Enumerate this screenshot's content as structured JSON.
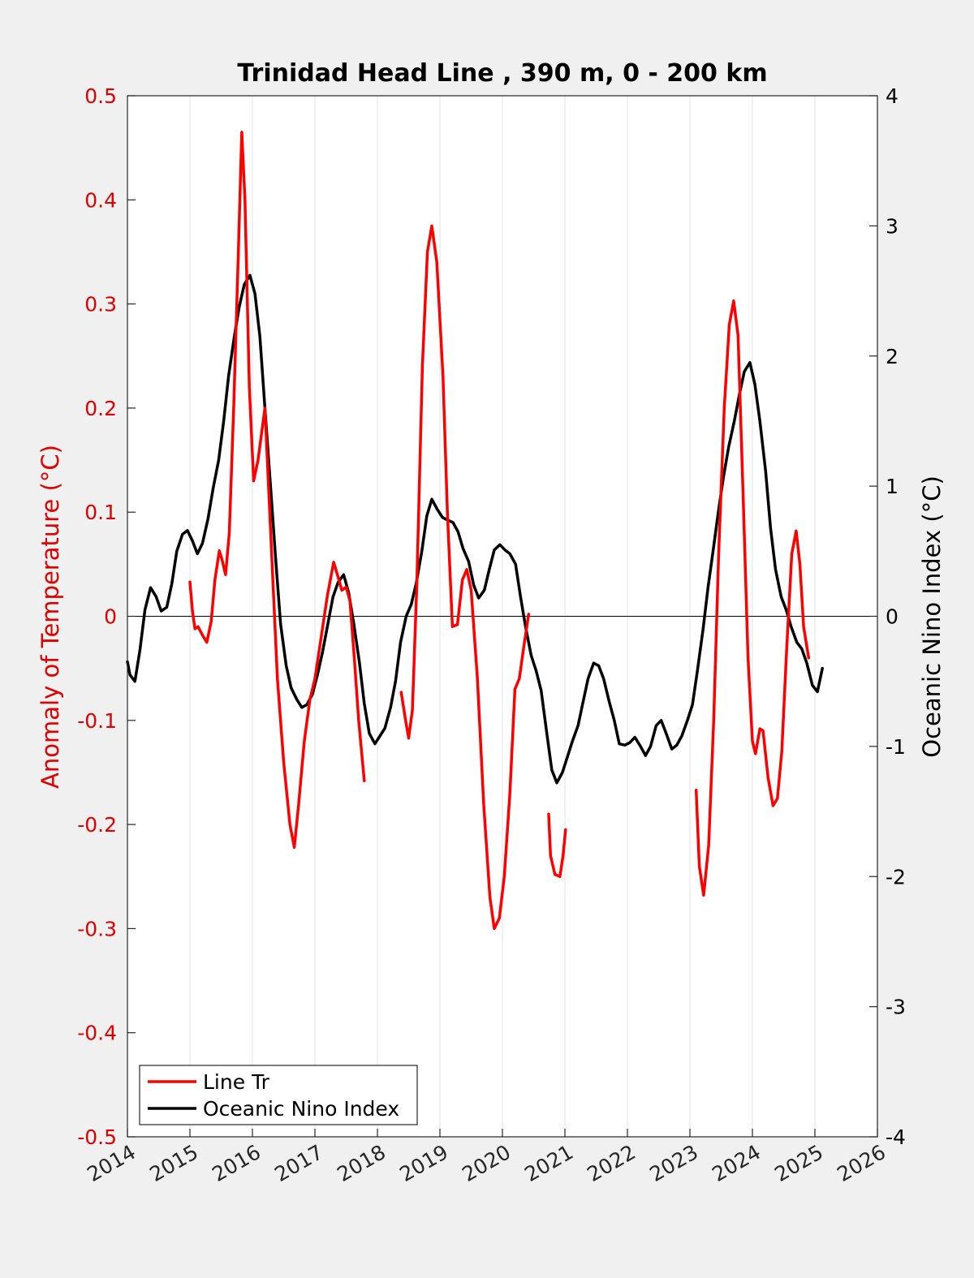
{
  "chart_data": {
    "type": "line",
    "title": "Trinidad Head Line , 390 m, 0 - 200 km",
    "xlabel": "",
    "ylabel_left": "Anomaly of Temperature (°C)",
    "ylabel_right": "Oceanic Nino Index (°C)",
    "xlim": [
      2014,
      2026
    ],
    "ylim_left": [
      -0.5,
      0.5
    ],
    "ylim_right": [
      -4,
      4
    ],
    "x_ticks": [
      "2014",
      "2015",
      "2016",
      "2017",
      "2018",
      "2019",
      "2020",
      "2021",
      "2022",
      "2023",
      "2024",
      "2025",
      "2026"
    ],
    "y_ticks_left": [
      "0.5",
      "0.4",
      "0.3",
      "0.2",
      "0.1",
      "0",
      "-0.1",
      "-0.2",
      "-0.3",
      "-0.4",
      "-0.5"
    ],
    "y_ticks_right": [
      "4",
      "3",
      "2",
      "1",
      "0",
      "-1",
      "-2",
      "-3",
      "-4"
    ],
    "grid": "vertical",
    "zero_line": true,
    "legend_position": "bottom-left",
    "colors": {
      "line_tr": "#ff0000",
      "oni": "#000000",
      "left_axis": "#e00000",
      "right_axis": "#000000"
    },
    "series": [
      {
        "name": "Line Tr",
        "axis": "left",
        "segments": [
          [
            [
              2015.0,
              0.033
            ],
            [
              2015.04,
              0.005
            ],
            [
              2015.08,
              -0.012
            ],
            [
              2015.13,
              -0.01
            ],
            [
              2015.2,
              -0.018
            ],
            [
              2015.27,
              -0.025
            ],
            [
              2015.34,
              -0.005
            ],
            [
              2015.4,
              0.035
            ],
            [
              2015.47,
              0.063
            ],
            [
              2015.51,
              0.055
            ],
            [
              2015.57,
              0.04
            ],
            [
              2015.63,
              0.08
            ],
            [
              2015.7,
              0.2
            ],
            [
              2015.77,
              0.34
            ],
            [
              2015.83,
              0.465
            ],
            [
              2015.88,
              0.4
            ],
            [
              2015.95,
              0.22
            ],
            [
              2016.02,
              0.13
            ],
            [
              2016.09,
              0.15
            ],
            [
              2016.2,
              0.2
            ],
            [
              2016.3,
              0.07
            ],
            [
              2016.4,
              -0.06
            ],
            [
              2016.5,
              -0.14
            ],
            [
              2016.6,
              -0.2
            ],
            [
              2016.67,
              -0.222
            ],
            [
              2016.74,
              -0.18
            ],
            [
              2016.83,
              -0.12
            ],
            [
              2016.92,
              -0.08
            ],
            [
              2017.0,
              -0.06
            ],
            [
              2017.1,
              -0.02
            ],
            [
              2017.2,
              0.02
            ],
            [
              2017.3,
              0.052
            ],
            [
              2017.36,
              0.04
            ],
            [
              2017.43,
              0.025
            ],
            [
              2017.5,
              0.028
            ],
            [
              2017.56,
              0.015
            ],
            [
              2017.63,
              -0.04
            ],
            [
              2017.7,
              -0.1
            ],
            [
              2017.79,
              -0.158
            ]
          ],
          [
            [
              2018.38,
              -0.073
            ],
            [
              2018.45,
              -0.1
            ],
            [
              2018.5,
              -0.117
            ],
            [
              2018.56,
              -0.09
            ],
            [
              2018.63,
              0.03
            ],
            [
              2018.72,
              0.24
            ],
            [
              2018.8,
              0.35
            ],
            [
              2018.87,
              0.375
            ],
            [
              2018.95,
              0.34
            ],
            [
              2019.05,
              0.23
            ],
            [
              2019.12,
              0.1
            ],
            [
              2019.2,
              -0.01
            ],
            [
              2019.28,
              -0.008
            ],
            [
              2019.36,
              0.035
            ],
            [
              2019.43,
              0.045
            ],
            [
              2019.5,
              0.025
            ],
            [
              2019.6,
              -0.06
            ],
            [
              2019.7,
              -0.18
            ],
            [
              2019.8,
              -0.27
            ],
            [
              2019.87,
              -0.3
            ],
            [
              2019.95,
              -0.29
            ],
            [
              2020.03,
              -0.25
            ],
            [
              2020.12,
              -0.17
            ],
            [
              2020.2,
              -0.07
            ],
            [
              2020.27,
              -0.06
            ],
            [
              2020.34,
              -0.03
            ],
            [
              2020.42,
              0.002
            ]
          ],
          [
            [
              2020.74,
              -0.19
            ],
            [
              2020.77,
              -0.23
            ],
            [
              2020.84,
              -0.248
            ],
            [
              2020.92,
              -0.25
            ],
            [
              2020.97,
              -0.23
            ],
            [
              2021.01,
              -0.205
            ]
          ],
          [
            [
              2023.1,
              -0.167
            ],
            [
              2023.15,
              -0.24
            ],
            [
              2023.22,
              -0.268
            ],
            [
              2023.3,
              -0.22
            ],
            [
              2023.38,
              -0.1
            ],
            [
              2023.46,
              0.06
            ],
            [
              2023.55,
              0.2
            ],
            [
              2023.63,
              0.28
            ],
            [
              2023.7,
              0.303
            ],
            [
              2023.77,
              0.27
            ],
            [
              2023.85,
              0.12
            ],
            [
              2023.93,
              -0.04
            ],
            [
              2024.0,
              -0.12
            ],
            [
              2024.05,
              -0.132
            ],
            [
              2024.12,
              -0.108
            ],
            [
              2024.17,
              -0.11
            ],
            [
              2024.25,
              -0.155
            ],
            [
              2024.33,
              -0.182
            ],
            [
              2024.4,
              -0.175
            ],
            [
              2024.47,
              -0.13
            ],
            [
              2024.55,
              -0.03
            ],
            [
              2024.63,
              0.06
            ],
            [
              2024.7,
              0.082
            ],
            [
              2024.76,
              0.05
            ],
            [
              2024.82,
              -0.01
            ],
            [
              2024.9,
              -0.04
            ]
          ]
        ]
      },
      {
        "name": "Oceanic Nino Index",
        "axis": "right",
        "segments": [
          [
            [
              2014.0,
              -0.35
            ],
            [
              2014.04,
              -0.45
            ],
            [
              2014.12,
              -0.5
            ],
            [
              2014.2,
              -0.26
            ],
            [
              2014.28,
              0.05
            ],
            [
              2014.37,
              0.22
            ],
            [
              2014.46,
              0.15
            ],
            [
              2014.54,
              0.04
            ],
            [
              2014.63,
              0.07
            ],
            [
              2014.71,
              0.25
            ],
            [
              2014.79,
              0.5
            ],
            [
              2014.88,
              0.63
            ],
            [
              2014.96,
              0.66
            ],
            [
              2015.04,
              0.58
            ],
            [
              2015.12,
              0.48
            ],
            [
              2015.2,
              0.56
            ],
            [
              2015.29,
              0.75
            ],
            [
              2015.37,
              0.98
            ],
            [
              2015.46,
              1.2
            ],
            [
              2015.54,
              1.5
            ],
            [
              2015.62,
              1.85
            ],
            [
              2015.71,
              2.15
            ],
            [
              2015.79,
              2.38
            ],
            [
              2015.87,
              2.55
            ],
            [
              2015.96,
              2.62
            ],
            [
              2016.04,
              2.48
            ],
            [
              2016.12,
              2.15
            ],
            [
              2016.2,
              1.6
            ],
            [
              2016.29,
              1.0
            ],
            [
              2016.37,
              0.45
            ],
            [
              2016.45,
              -0.06
            ],
            [
              2016.54,
              -0.38
            ],
            [
              2016.62,
              -0.55
            ],
            [
              2016.71,
              -0.64
            ],
            [
              2016.79,
              -0.7
            ],
            [
              2016.87,
              -0.68
            ],
            [
              2016.96,
              -0.6
            ],
            [
              2017.04,
              -0.45
            ],
            [
              2017.12,
              -0.28
            ],
            [
              2017.21,
              -0.05
            ],
            [
              2017.29,
              0.15
            ],
            [
              2017.37,
              0.26
            ],
            [
              2017.46,
              0.32
            ],
            [
              2017.54,
              0.18
            ],
            [
              2017.62,
              -0.05
            ],
            [
              2017.71,
              -0.35
            ],
            [
              2017.79,
              -0.67
            ],
            [
              2017.87,
              -0.9
            ],
            [
              2017.96,
              -0.98
            ],
            [
              2018.04,
              -0.92
            ],
            [
              2018.12,
              -0.86
            ],
            [
              2018.21,
              -0.7
            ],
            [
              2018.29,
              -0.5
            ],
            [
              2018.37,
              -0.2
            ],
            [
              2018.46,
              0.0
            ],
            [
              2018.54,
              0.09
            ],
            [
              2018.62,
              0.25
            ],
            [
              2018.71,
              0.5
            ],
            [
              2018.79,
              0.77
            ],
            [
              2018.87,
              0.9
            ],
            [
              2018.96,
              0.82
            ],
            [
              2019.04,
              0.76
            ],
            [
              2019.12,
              0.74
            ],
            [
              2019.21,
              0.72
            ],
            [
              2019.29,
              0.65
            ],
            [
              2019.37,
              0.52
            ],
            [
              2019.46,
              0.42
            ],
            [
              2019.54,
              0.24
            ],
            [
              2019.62,
              0.14
            ],
            [
              2019.71,
              0.2
            ],
            [
              2019.79,
              0.36
            ],
            [
              2019.87,
              0.51
            ],
            [
              2019.96,
              0.55
            ],
            [
              2020.04,
              0.51
            ],
            [
              2020.12,
              0.48
            ],
            [
              2020.21,
              0.4
            ],
            [
              2020.29,
              0.15
            ],
            [
              2020.37,
              -0.08
            ],
            [
              2020.46,
              -0.3
            ],
            [
              2020.54,
              -0.42
            ],
            [
              2020.62,
              -0.57
            ],
            [
              2020.71,
              -0.9
            ],
            [
              2020.79,
              -1.18
            ],
            [
              2020.87,
              -1.28
            ],
            [
              2020.96,
              -1.2
            ],
            [
              2021.04,
              -1.08
            ],
            [
              2021.12,
              -0.96
            ],
            [
              2021.21,
              -0.84
            ],
            [
              2021.29,
              -0.66
            ],
            [
              2021.37,
              -0.48
            ],
            [
              2021.46,
              -0.36
            ],
            [
              2021.54,
              -0.38
            ],
            [
              2021.62,
              -0.48
            ],
            [
              2021.71,
              -0.66
            ],
            [
              2021.79,
              -0.8
            ],
            [
              2021.87,
              -0.98
            ],
            [
              2021.96,
              -0.99
            ],
            [
              2022.04,
              -0.97
            ],
            [
              2022.12,
              -0.93
            ],
            [
              2022.21,
              -1.0
            ],
            [
              2022.29,
              -1.07
            ],
            [
              2022.37,
              -1.0
            ],
            [
              2022.46,
              -0.84
            ],
            [
              2022.54,
              -0.8
            ],
            [
              2022.62,
              -0.9
            ],
            [
              2022.71,
              -1.02
            ],
            [
              2022.79,
              -0.99
            ],
            [
              2022.87,
              -0.92
            ],
            [
              2022.96,
              -0.8
            ],
            [
              2023.04,
              -0.68
            ],
            [
              2023.12,
              -0.42
            ],
            [
              2023.21,
              -0.1
            ],
            [
              2023.29,
              0.22
            ],
            [
              2023.37,
              0.5
            ],
            [
              2023.46,
              0.82
            ],
            [
              2023.54,
              1.08
            ],
            [
              2023.62,
              1.3
            ],
            [
              2023.71,
              1.5
            ],
            [
              2023.79,
              1.7
            ],
            [
              2023.87,
              1.88
            ],
            [
              2023.96,
              1.95
            ],
            [
              2024.04,
              1.78
            ],
            [
              2024.12,
              1.5
            ],
            [
              2024.21,
              1.12
            ],
            [
              2024.29,
              0.68
            ],
            [
              2024.37,
              0.36
            ],
            [
              2024.46,
              0.15
            ],
            [
              2024.54,
              0.05
            ],
            [
              2024.62,
              -0.08
            ],
            [
              2024.71,
              -0.2
            ],
            [
              2024.79,
              -0.25
            ],
            [
              2024.87,
              -0.36
            ],
            [
              2024.96,
              -0.53
            ],
            [
              2025.04,
              -0.58
            ],
            [
              2025.12,
              -0.4
            ]
          ]
        ]
      }
    ]
  },
  "legend": {
    "items": [
      {
        "label": "Line Tr",
        "color": "#ff0000"
      },
      {
        "label": "Oceanic Nino Index",
        "color": "#000000"
      }
    ]
  }
}
